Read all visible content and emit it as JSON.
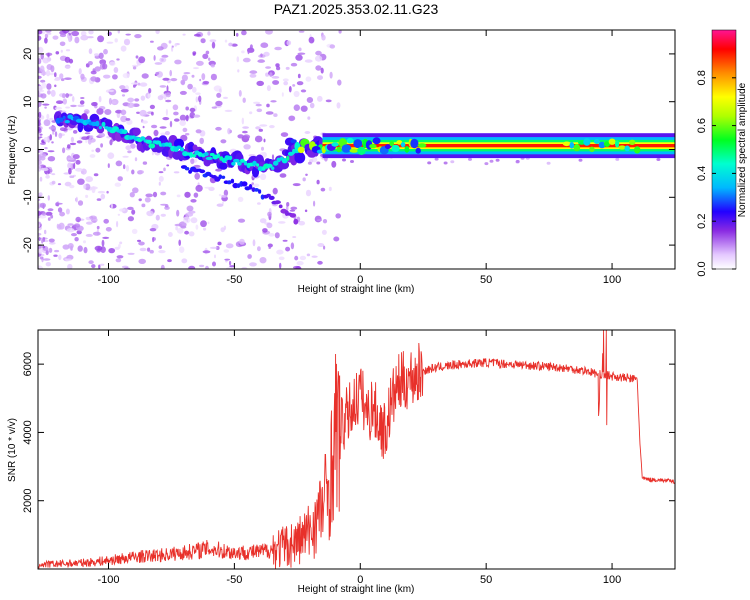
{
  "chart_data": [
    {
      "type": "heatmap",
      "title": "PAZ1.2025.353.02.11.G23",
      "xlabel": "Height of straight line (km)",
      "ylabel": "Frequency (Hz)",
      "xlim": [
        -128,
        125
      ],
      "ylim": [
        -25,
        25
      ],
      "xticks": [
        -100,
        -50,
        0,
        50,
        100
      ],
      "yticks": [
        -20,
        -10,
        0,
        10,
        20
      ],
      "colorbar": {
        "label": "Normalized spectral amplitude",
        "range": [
          0,
          1
        ],
        "ticks": [
          "0.0",
          "0.2",
          "0.4",
          "0.6",
          "0.8"
        ],
        "tick_values": [
          0,
          0.2,
          0.4,
          0.6,
          0.8
        ]
      },
      "ridge_points": [
        {
          "x": -118,
          "y": 6.5,
          "a": 0.3
        },
        {
          "x": -112,
          "y": 6.0,
          "a": 0.32
        },
        {
          "x": -105,
          "y": 5.0,
          "a": 0.35
        },
        {
          "x": -100,
          "y": 4.5,
          "a": 0.38
        },
        {
          "x": -95,
          "y": 3.5,
          "a": 0.4
        },
        {
          "x": -90,
          "y": 2.5,
          "a": 0.4
        },
        {
          "x": -85,
          "y": 1.5,
          "a": 0.42
        },
        {
          "x": -80,
          "y": 1.0,
          "a": 0.4
        },
        {
          "x": -75,
          "y": 0.5,
          "a": 0.4
        },
        {
          "x": -70,
          "y": -0.5,
          "a": 0.42
        },
        {
          "x": -65,
          "y": -1.0,
          "a": 0.4
        },
        {
          "x": -60,
          "y": -1.5,
          "a": 0.4
        },
        {
          "x": -55,
          "y": -2.0,
          "a": 0.42
        },
        {
          "x": -50,
          "y": -2.5,
          "a": 0.42
        },
        {
          "x": -45,
          "y": -3.0,
          "a": 0.42
        },
        {
          "x": -40,
          "y": -3.5,
          "a": 0.42
        },
        {
          "x": -35,
          "y": -3.5,
          "a": 0.42
        },
        {
          "x": -30,
          "y": -2.0,
          "a": 0.42
        },
        {
          "x": -25,
          "y": -0.5,
          "a": 0.45
        },
        {
          "x": -20,
          "y": 0.5,
          "a": 0.5
        },
        {
          "x": -15,
          "y": 0.8,
          "a": 0.55
        },
        {
          "x": -10,
          "y": 0.8,
          "a": 0.6
        },
        {
          "x": -5,
          "y": 0.8,
          "a": 0.7
        },
        {
          "x": 0,
          "y": 0.8,
          "a": 0.75
        },
        {
          "x": 5,
          "y": 0.8,
          "a": 0.75
        },
        {
          "x": 10,
          "y": 0.8,
          "a": 0.8
        },
        {
          "x": 20,
          "y": 0.8,
          "a": 0.85
        },
        {
          "x": 30,
          "y": 0.8,
          "a": 0.9
        },
        {
          "x": 50,
          "y": 0.8,
          "a": 0.92
        },
        {
          "x": 70,
          "y": 0.8,
          "a": 0.92
        },
        {
          "x": 90,
          "y": 0.8,
          "a": 0.9
        },
        {
          "x": 110,
          "y": 0.8,
          "a": 0.9
        },
        {
          "x": 125,
          "y": 0.8,
          "a": 0.9
        }
      ],
      "secondary_ridge_points": [
        {
          "x": -70,
          "y": -4.0,
          "a": 0.25
        },
        {
          "x": -60,
          "y": -5.5,
          "a": 0.25
        },
        {
          "x": -50,
          "y": -7.0,
          "a": 0.25
        },
        {
          "x": -40,
          "y": -9.0,
          "a": 0.25
        },
        {
          "x": -35,
          "y": -10.5,
          "a": 0.22
        },
        {
          "x": -25,
          "y": -15.0,
          "a": 0.12
        }
      ]
    },
    {
      "type": "line",
      "xlabel": "Height of straight line (km)",
      "ylabel": "SNR (10 * v/v)",
      "xlim": [
        -128,
        125
      ],
      "ylim": [
        0,
        7000
      ],
      "xticks": [
        -100,
        -50,
        0,
        50,
        100
      ],
      "yticks": [
        2000,
        4000,
        6000
      ],
      "series": [
        {
          "name": "SNR",
          "color": "#e8302a",
          "x": [
            -128,
            -120,
            -110,
            -100,
            -90,
            -80,
            -70,
            -60,
            -50,
            -40,
            -30,
            -25,
            -20,
            -15,
            -12,
            -10,
            -8,
            -5,
            -2,
            0,
            3,
            5,
            8,
            10,
            12,
            15,
            20,
            25,
            30,
            40,
            50,
            60,
            70,
            80,
            90,
            95,
            100,
            105,
            110,
            111,
            112,
            115,
            120,
            125
          ],
          "values": [
            120,
            150,
            180,
            250,
            350,
            400,
            480,
            600,
            480,
            500,
            650,
            800,
            1100,
            1800,
            2600,
            4000,
            4100,
            4500,
            4900,
            5200,
            4500,
            4800,
            4200,
            4000,
            4800,
            5400,
            5600,
            5800,
            5900,
            6000,
            6050,
            6000,
            5950,
            5900,
            5800,
            5700,
            5650,
            5600,
            5550,
            3800,
            2650,
            2620,
            2600,
            2560
          ]
        }
      ]
    }
  ]
}
